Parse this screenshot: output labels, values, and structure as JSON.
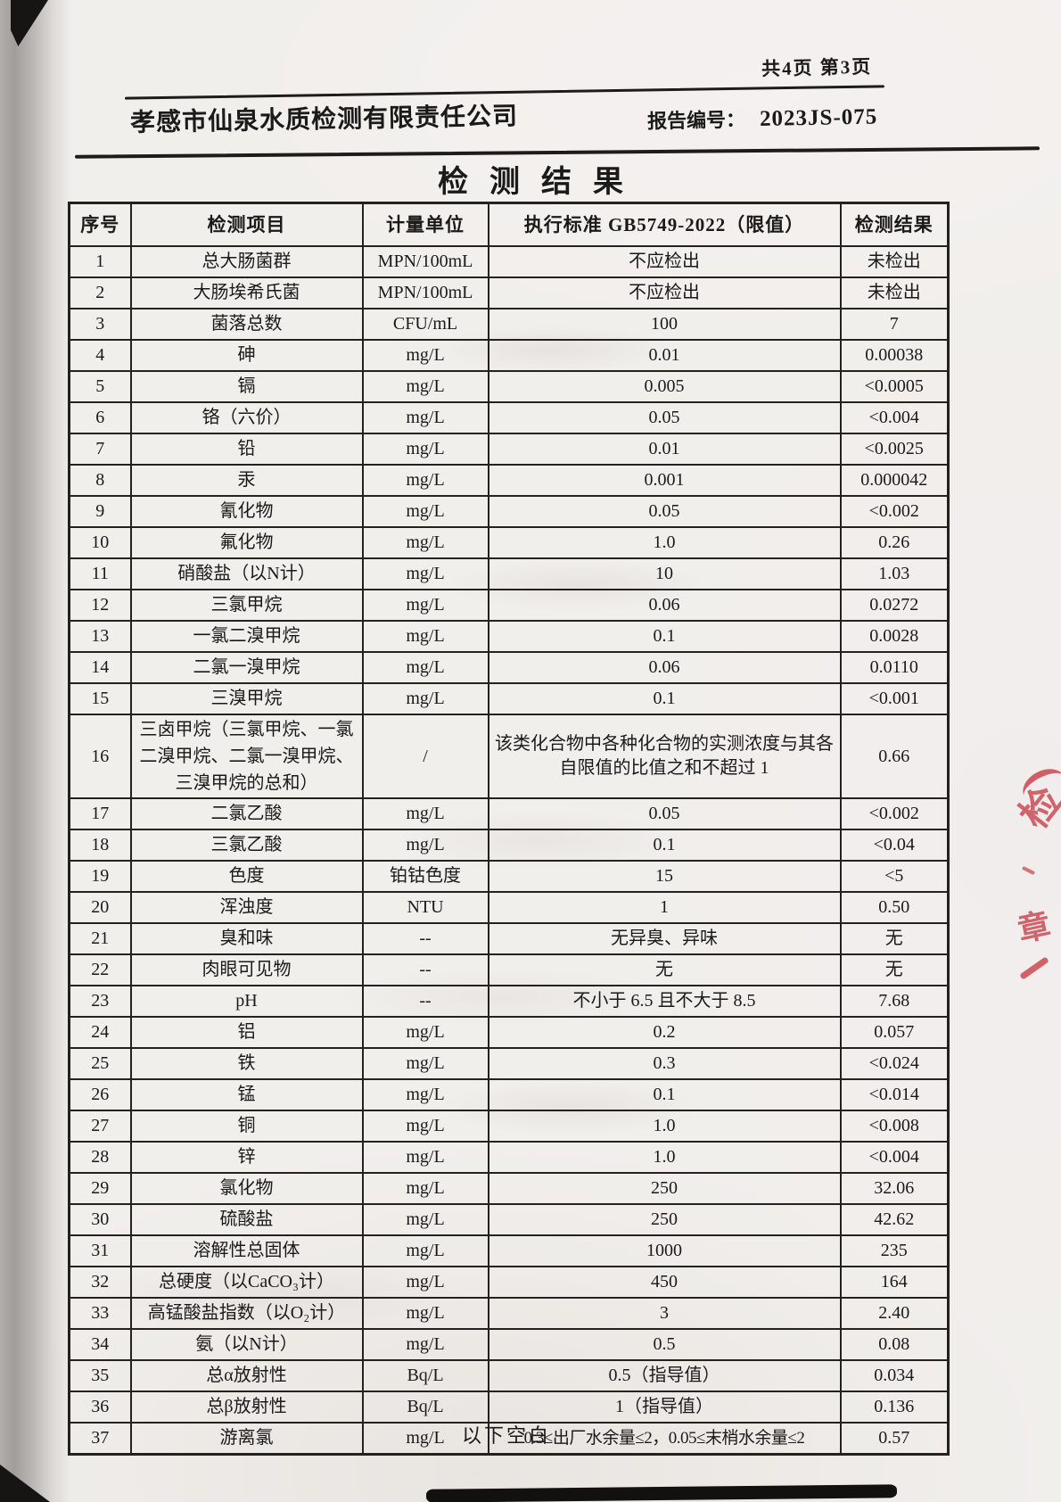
{
  "header": {
    "page_indicator": "共4页 第3页",
    "company_name": "孝感市仙泉水质检测有限责任公司",
    "report_no_label": "报告编号：",
    "report_no_value": "2023JS-075",
    "title": "检测结果"
  },
  "footer": {
    "note": "以下空白"
  },
  "stamp": {
    "name": "red-seal-fragment",
    "color": "#c73e48"
  },
  "table": {
    "headers": {
      "no": "序号",
      "item": "检测项目",
      "unit": "计量单位",
      "standard": "执行标准 GB5749-2022（限值）",
      "result": "检测结果"
    },
    "rows": [
      {
        "no": "1",
        "item": "总大肠菌群",
        "unit": "MPN/100mL",
        "standard": "不应检出",
        "result": "未检出"
      },
      {
        "no": "2",
        "item": "大肠埃希氏菌",
        "unit": "MPN/100mL",
        "standard": "不应检出",
        "result": "未检出"
      },
      {
        "no": "3",
        "item": "菌落总数",
        "unit": "CFU/mL",
        "standard": "100",
        "result": "7"
      },
      {
        "no": "4",
        "item": "砷",
        "unit": "mg/L",
        "standard": "0.01",
        "result": "0.00038"
      },
      {
        "no": "5",
        "item": "镉",
        "unit": "mg/L",
        "standard": "0.005",
        "result": "<0.0005"
      },
      {
        "no": "6",
        "item": "铬（六价）",
        "unit": "mg/L",
        "standard": "0.05",
        "result": "<0.004"
      },
      {
        "no": "7",
        "item": "铅",
        "unit": "mg/L",
        "standard": "0.01",
        "result": "<0.0025"
      },
      {
        "no": "8",
        "item": "汞",
        "unit": "mg/L",
        "standard": "0.001",
        "result": "0.000042"
      },
      {
        "no": "9",
        "item": "氰化物",
        "unit": "mg/L",
        "standard": "0.05",
        "result": "<0.002"
      },
      {
        "no": "10",
        "item": "氟化物",
        "unit": "mg/L",
        "standard": "1.0",
        "result": "0.26"
      },
      {
        "no": "11",
        "item": "硝酸盐（以N计）",
        "unit": "mg/L",
        "standard": "10",
        "result": "1.03"
      },
      {
        "no": "12",
        "item": "三氯甲烷",
        "unit": "mg/L",
        "standard": "0.06",
        "result": "0.0272"
      },
      {
        "no": "13",
        "item": "一氯二溴甲烷",
        "unit": "mg/L",
        "standard": "0.1",
        "result": "0.0028"
      },
      {
        "no": "14",
        "item": "二氯一溴甲烷",
        "unit": "mg/L",
        "standard": "0.06",
        "result": "0.0110"
      },
      {
        "no": "15",
        "item": "三溴甲烷",
        "unit": "mg/L",
        "standard": "0.1",
        "result": "<0.001"
      },
      {
        "no": "16",
        "item": "三卤甲烷（三氯甲烷、一氯二溴甲烷、二氯一溴甲烷、三溴甲烷的总和）",
        "unit": "/",
        "standard": "该类化合物中各种化合物的实测浓度与其各自限值的比值之和不超过 1",
        "result": "0.66"
      },
      {
        "no": "17",
        "item": "二氯乙酸",
        "unit": "mg/L",
        "standard": "0.05",
        "result": "<0.002"
      },
      {
        "no": "18",
        "item": "三氯乙酸",
        "unit": "mg/L",
        "standard": "0.1",
        "result": "<0.04"
      },
      {
        "no": "19",
        "item": "色度",
        "unit": "铂钴色度",
        "standard": "15",
        "result": "<5"
      },
      {
        "no": "20",
        "item": "浑浊度",
        "unit": "NTU",
        "standard": "1",
        "result": "0.50"
      },
      {
        "no": "21",
        "item": "臭和味",
        "unit": "--",
        "standard": "无异臭、异味",
        "result": "无"
      },
      {
        "no": "22",
        "item": "肉眼可见物",
        "unit": "--",
        "standard": "无",
        "result": "无"
      },
      {
        "no": "23",
        "item": "pH",
        "unit": "--",
        "standard": "不小于 6.5 且不大于 8.5",
        "result": "7.68"
      },
      {
        "no": "24",
        "item": "铝",
        "unit": "mg/L",
        "standard": "0.2",
        "result": "0.057"
      },
      {
        "no": "25",
        "item": "铁",
        "unit": "mg/L",
        "standard": "0.3",
        "result": "<0.024"
      },
      {
        "no": "26",
        "item": "锰",
        "unit": "mg/L",
        "standard": "0.1",
        "result": "<0.014"
      },
      {
        "no": "27",
        "item": "铜",
        "unit": "mg/L",
        "standard": "1.0",
        "result": "<0.008"
      },
      {
        "no": "28",
        "item": "锌",
        "unit": "mg/L",
        "standard": "1.0",
        "result": "<0.004"
      },
      {
        "no": "29",
        "item": "氯化物",
        "unit": "mg/L",
        "standard": "250",
        "result": "32.06"
      },
      {
        "no": "30",
        "item": "硫酸盐",
        "unit": "mg/L",
        "standard": "250",
        "result": "42.62"
      },
      {
        "no": "31",
        "item": "溶解性总固体",
        "unit": "mg/L",
        "standard": "1000",
        "result": "235"
      },
      {
        "no": "32",
        "item": "总硬度（以CaCO₃计）",
        "unit": "mg/L",
        "standard": "450",
        "result": "164"
      },
      {
        "no": "33",
        "item": "高锰酸盐指数（以O₂计）",
        "unit": "mg/L",
        "standard": "3",
        "result": "2.40"
      },
      {
        "no": "34",
        "item": "氨（以N计）",
        "unit": "mg/L",
        "standard": "0.5",
        "result": "0.08"
      },
      {
        "no": "35",
        "item": "总α放射性",
        "unit": "Bq/L",
        "standard": "0.5（指导值）",
        "result": "0.034"
      },
      {
        "no": "36",
        "item": "总β放射性",
        "unit": "Bq/L",
        "standard": "1（指导值）",
        "result": "0.136"
      },
      {
        "no": "37",
        "item": "游离氯",
        "unit": "mg/L",
        "standard": "0.3≤出厂水余量≤2，0.05≤末梢水余量≤2",
        "result": "0.57"
      }
    ]
  }
}
